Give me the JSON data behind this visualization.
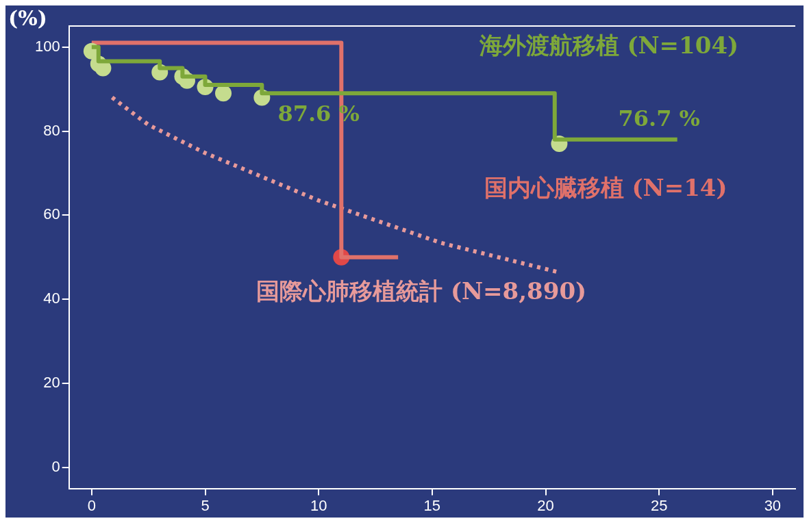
{
  "chart_data": {
    "type": "step",
    "ylabel": "(%)",
    "xlim": [
      -1,
      31
    ],
    "ylim": [
      -5,
      105
    ],
    "xticks": [
      0,
      5,
      10,
      15,
      20,
      25,
      30
    ],
    "yticks": [
      0,
      20,
      40,
      60,
      80,
      100
    ],
    "grid": false,
    "legend": false,
    "series": [
      {
        "name": "海外渡航移植 (N=104)",
        "color": "#7ea83a",
        "x": [
          0,
          0.3,
          3,
          4,
          5,
          7.5,
          20.4,
          25.8
        ],
        "values": [
          100,
          96.6,
          95,
          93,
          91,
          89,
          78,
          78
        ]
      },
      {
        "type": "scatter",
        "color": "#c5dc8e",
        "marker": "circle",
        "x": [
          0,
          0.3,
          0.5,
          3,
          4,
          4.2,
          5,
          5.8,
          7.5,
          20.6
        ],
        "values": [
          99,
          96,
          95,
          94,
          93,
          92,
          90.5,
          89,
          88,
          77
        ]
      },
      {
        "name": "国内心臓移植 (N=14)",
        "color": "#e0716a",
        "x": [
          0,
          11,
          13.5
        ],
        "values": [
          101,
          50,
          50
        ]
      },
      {
        "type": "scatter",
        "color": "#e04848",
        "marker": "circle",
        "x": [
          11
        ],
        "values": [
          50
        ]
      },
      {
        "name": "国際心肺移植統計 (N=8,890)",
        "type": "line",
        "line_style": "dotted",
        "color": "#e79a9a",
        "x": [
          0.9,
          2.5,
          5,
          10,
          15.4,
          20.6
        ],
        "values": [
          88,
          81.5,
          74.8,
          63.5,
          53.4,
          46.4
        ]
      }
    ],
    "annotations": [
      "87.6 %",
      "76.7 %"
    ]
  }
}
